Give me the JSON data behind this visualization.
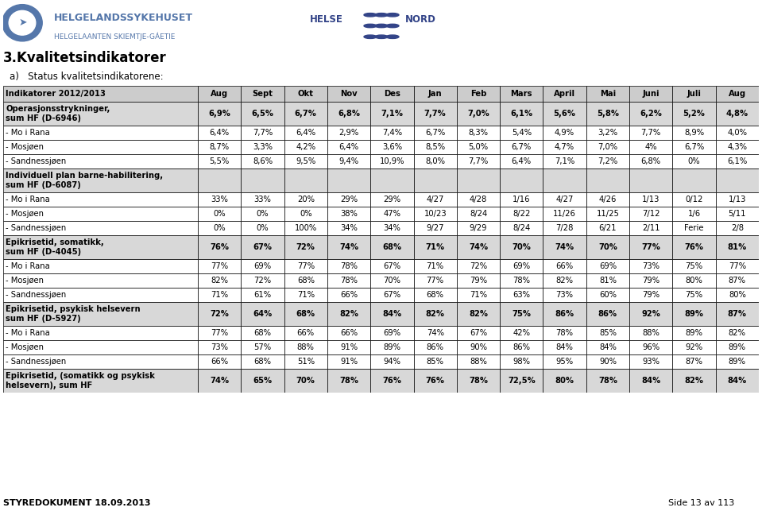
{
  "title1": "3.Kvalitetsindikatorer",
  "title2": "a)   Status kvalitetsindikatorene:",
  "footer_left": "STYREDOKUMENT 18.09.2013",
  "footer_right": "Side 13 av 113",
  "col_headers": [
    "Indikatorer 2012/2013",
    "Aug",
    "Sept",
    "Okt",
    "Nov",
    "Des",
    "Jan",
    "Feb",
    "Mars",
    "April",
    "Mai",
    "Juni",
    "Juli",
    "Aug"
  ],
  "rows": [
    {
      "label": "Operasjonsstrykninger,\nsum HF (D-6946)",
      "bold": true,
      "shaded": true,
      "values": [
        "6,9%",
        "6,5%",
        "6,7%",
        "6,8%",
        "7,1%",
        "7,7%",
        "7,0%",
        "6,1%",
        "5,6%",
        "5,8%",
        "6,2%",
        "5,2%",
        "4,8%"
      ]
    },
    {
      "label": "- Mo i Rana",
      "bold": false,
      "shaded": false,
      "values": [
        "6,4%",
        "7,7%",
        "6,4%",
        "2,9%",
        "7,4%",
        "6,7%",
        "8,3%",
        "5,4%",
        "4,9%",
        "3,2%",
        "7,7%",
        "8,9%",
        "4,0%"
      ]
    },
    {
      "label": "- Mosjøen",
      "bold": false,
      "shaded": false,
      "values": [
        "8,7%",
        "3,3%",
        "4,2%",
        "6,4%",
        "3,6%",
        "8,5%",
        "5,0%",
        "6,7%",
        "4,7%",
        "7,0%",
        "4%",
        "6,7%",
        "4,3%"
      ]
    },
    {
      "label": "- Sandnessjøen",
      "bold": false,
      "shaded": false,
      "values": [
        "5,5%",
        "8,6%",
        "9,5%",
        "9,4%",
        "10,9%",
        "8,0%",
        "7,7%",
        "6,4%",
        "7,1%",
        "7,2%",
        "6,8%",
        "0%",
        "6,1%"
      ]
    },
    {
      "label": "Individuell plan barne-habilitering,\nsum HF (D-6087)",
      "bold": true,
      "shaded": true,
      "values": [
        "",
        "",
        "",
        "",
        "",
        "",
        "",
        "",
        "",
        "",
        "",
        "",
        ""
      ]
    },
    {
      "label": "- Mo i Rana",
      "bold": false,
      "shaded": false,
      "values": [
        "33%",
        "33%",
        "20%",
        "29%",
        "29%",
        "4/27",
        "4/28",
        "1/16",
        "4/27",
        "4/26",
        "1/13",
        "0/12",
        "1/13"
      ]
    },
    {
      "label": "- Mosjøen",
      "bold": false,
      "shaded": false,
      "values": [
        "0%",
        "0%",
        "0%",
        "38%",
        "47%",
        "10/23",
        "8/24",
        "8/22",
        "11/26",
        "11/25",
        "7/12",
        "1/6",
        "5/11"
      ]
    },
    {
      "label": "- Sandnessjøen",
      "bold": false,
      "shaded": false,
      "values": [
        "0%",
        "0%",
        "100%",
        "34%",
        "34%",
        "9/27",
        "9/29",
        "8/24",
        "7/28",
        "6/21",
        "2/11",
        "Ferie",
        "2/8"
      ]
    },
    {
      "label": "Epikrisetid, somatikk,\nsum HF (D-4045)",
      "bold": true,
      "shaded": true,
      "values": [
        "76%",
        "67%",
        "72%",
        "74%",
        "68%",
        "71%",
        "74%",
        "70%",
        "74%",
        "70%",
        "77%",
        "76%",
        "81%"
      ]
    },
    {
      "label": "- Mo i Rana",
      "bold": false,
      "shaded": false,
      "values": [
        "77%",
        "69%",
        "77%",
        "78%",
        "67%",
        "71%",
        "72%",
        "69%",
        "66%",
        "69%",
        "73%",
        "75%",
        "77%"
      ]
    },
    {
      "label": "- Mosjøen",
      "bold": false,
      "shaded": false,
      "values": [
        "82%",
        "72%",
        "68%",
        "78%",
        "70%",
        "77%",
        "79%",
        "78%",
        "82%",
        "81%",
        "79%",
        "80%",
        "87%"
      ]
    },
    {
      "label": "- Sandnessjøen",
      "bold": false,
      "shaded": false,
      "values": [
        "71%",
        "61%",
        "71%",
        "66%",
        "67%",
        "68%",
        "71%",
        "63%",
        "73%",
        "60%",
        "79%",
        "75%",
        "80%"
      ]
    },
    {
      "label": "Epikrisetid, psykisk helsevern\nsum HF (D-5927)",
      "bold": true,
      "shaded": true,
      "values": [
        "72%",
        "64%",
        "68%",
        "82%",
        "84%",
        "82%",
        "82%",
        "75%",
        "86%",
        "86%",
        "92%",
        "89%",
        "87%"
      ]
    },
    {
      "label": "- Mo i Rana",
      "bold": false,
      "shaded": false,
      "values": [
        "77%",
        "68%",
        "66%",
        "66%",
        "69%",
        "74%",
        "67%",
        "42%",
        "78%",
        "85%",
        "88%",
        "89%",
        "82%"
      ]
    },
    {
      "label": "- Mosjøen",
      "bold": false,
      "shaded": false,
      "values": [
        "73%",
        "57%",
        "88%",
        "91%",
        "89%",
        "86%",
        "90%",
        "86%",
        "84%",
        "84%",
        "96%",
        "92%",
        "89%"
      ]
    },
    {
      "label": "- Sandnessjøen",
      "bold": false,
      "shaded": false,
      "values": [
        "66%",
        "68%",
        "51%",
        "91%",
        "94%",
        "85%",
        "88%",
        "98%",
        "95%",
        "90%",
        "93%",
        "87%",
        "89%"
      ]
    },
    {
      "label": "Epikrisetid, (somatikk og psykisk\nhelsevern), sum HF",
      "bold": true,
      "shaded": true,
      "values": [
        "74%",
        "65%",
        "70%",
        "78%",
        "76%",
        "76%",
        "78%",
        "72,5%",
        "80%",
        "78%",
        "84%",
        "82%",
        "84%"
      ]
    }
  ],
  "header_bg": "#cccccc",
  "shaded_bg": "#d8d8d8",
  "normal_bg": "#ffffff",
  "border_color": "#000000",
  "cell_font_size": 7.2,
  "logo_color": "#5577aa",
  "title_color": "#000000",
  "helse_color": "#333366"
}
